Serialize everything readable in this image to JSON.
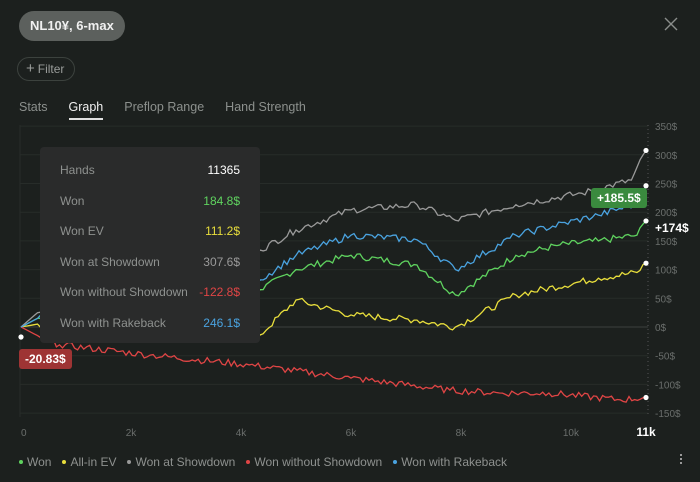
{
  "header": {
    "chip_label": "NL10¥, 6-max",
    "filter_label": "Filter"
  },
  "tabs": [
    {
      "label": "Stats"
    },
    {
      "label": "Graph"
    },
    {
      "label": "Preflop Range"
    },
    {
      "label": "Hand Strength"
    }
  ],
  "tooltip": {
    "rows": [
      {
        "label": "Hands",
        "value": "11365",
        "color": "#ffffff"
      },
      {
        "label": "Won",
        "value": "184.8$",
        "color": "#5fd35f"
      },
      {
        "label": "Won EV",
        "value": "111.2$",
        "color": "#e8de3c"
      },
      {
        "label": "Won at Showdown",
        "value": "307.6$",
        "color": "#9a9a9a"
      },
      {
        "label": "Won without Showdown",
        "value": "-122.8$",
        "color": "#e04545"
      },
      {
        "label": "Won with Rakeback",
        "value": "246.1$",
        "color": "#4aa3e0"
      }
    ]
  },
  "tags": {
    "green": "+185.5$",
    "end_value": "+174$",
    "red": "-20.83$"
  },
  "chart_data": {
    "type": "line",
    "xlabel": "",
    "ylabel": "",
    "x_ticks": [
      {
        "v": 0,
        "label": "0"
      },
      {
        "v": 2000,
        "label": "2k"
      },
      {
        "v": 4000,
        "label": "4k"
      },
      {
        "v": 6000,
        "label": "6k"
      },
      {
        "v": 8000,
        "label": "8k"
      },
      {
        "v": 10000,
        "label": "10k"
      },
      {
        "v": 11365,
        "label": "11k"
      }
    ],
    "y_ticks": [
      {
        "v": 350,
        "label": "350$"
      },
      {
        "v": 300,
        "label": "300$"
      },
      {
        "v": 250,
        "label": "250$"
      },
      {
        "v": 200,
        "label": "200$"
      },
      {
        "v": 150,
        "label": "150$"
      },
      {
        "v": 100,
        "label": "100$"
      },
      {
        "v": 50,
        "label": "50$"
      },
      {
        "v": 0,
        "label": "0$"
      },
      {
        "v": -50,
        "label": "-50$"
      },
      {
        "v": -100,
        "label": "-100$"
      },
      {
        "v": -150,
        "label": "-150$"
      }
    ],
    "xlim": [
      0,
      11365
    ],
    "ylim": [
      -155,
      355
    ],
    "series": [
      {
        "name": "Won",
        "color": "#5fd35f",
        "points": [
          [
            0,
            0
          ],
          [
            300,
            15
          ],
          [
            1000,
            20
          ],
          [
            3000,
            50
          ],
          [
            4350,
            65
          ],
          [
            5000,
            100
          ],
          [
            6000,
            125
          ],
          [
            7200,
            108
          ],
          [
            7900,
            56
          ],
          [
            9000,
            125
          ],
          [
            9800,
            143
          ],
          [
            10500,
            150
          ],
          [
            11200,
            160
          ],
          [
            11365,
            184.8
          ]
        ]
      },
      {
        "name": "All-in EV",
        "color": "#e8de3c",
        "points": [
          [
            0,
            0
          ],
          [
            300,
            5
          ],
          [
            1000,
            5
          ],
          [
            3000,
            -5
          ],
          [
            4350,
            -14
          ],
          [
            5000,
            47
          ],
          [
            6000,
            21
          ],
          [
            7200,
            12
          ],
          [
            7900,
            0
          ],
          [
            9000,
            56
          ],
          [
            10500,
            85
          ],
          [
            11200,
            95
          ],
          [
            11365,
            111.2
          ]
        ]
      },
      {
        "name": "Won at Showdown",
        "color": "#9a9a9a",
        "points": [
          [
            0,
            0
          ],
          [
            300,
            25
          ],
          [
            1000,
            40
          ],
          [
            3000,
            110
          ],
          [
            4350,
            134
          ],
          [
            5000,
            169
          ],
          [
            6000,
            204
          ],
          [
            7200,
            213
          ],
          [
            7900,
            186
          ],
          [
            9000,
            213
          ],
          [
            10200,
            233
          ],
          [
            11100,
            256
          ],
          [
            11365,
            307.6
          ]
        ]
      },
      {
        "name": "Won without Showdown",
        "color": "#e04545",
        "points": [
          [
            0,
            0
          ],
          [
            300,
            -15
          ],
          [
            700,
            -31
          ],
          [
            2350,
            -49
          ],
          [
            4150,
            -66
          ],
          [
            6000,
            -89
          ],
          [
            7800,
            -110
          ],
          [
            8700,
            -115
          ],
          [
            9600,
            -115
          ],
          [
            10900,
            -127
          ],
          [
            11365,
            -122.8
          ]
        ]
      },
      {
        "name": "Won with Rakeback",
        "color": "#4aa3e0",
        "points": [
          [
            0,
            0
          ],
          [
            300,
            15
          ],
          [
            1000,
            25
          ],
          [
            3000,
            65
          ],
          [
            4350,
            82
          ],
          [
            5000,
            125
          ],
          [
            6000,
            160
          ],
          [
            7200,
            152
          ],
          [
            7900,
            100
          ],
          [
            9000,
            160
          ],
          [
            10500,
            195
          ],
          [
            11200,
            215
          ],
          [
            11365,
            246.1
          ]
        ]
      }
    ]
  },
  "legend": [
    {
      "label": "Won",
      "color": "#5fd35f"
    },
    {
      "label": "All-in EV",
      "color": "#e8de3c"
    },
    {
      "label": "Won at Showdown",
      "color": "#9a9a9a"
    },
    {
      "label": "Won without Showdown",
      "color": "#e04545"
    },
    {
      "label": "Won with Rakeback",
      "color": "#4aa3e0"
    }
  ]
}
